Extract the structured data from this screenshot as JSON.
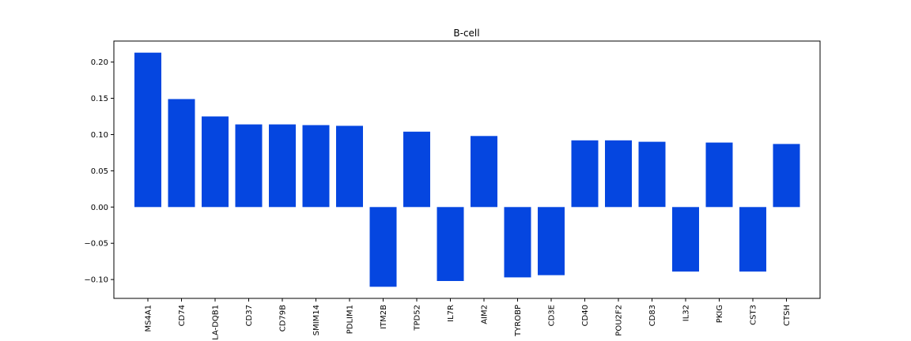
{
  "chart_data": {
    "type": "bar",
    "title": "B-cell",
    "xlabel": "",
    "ylabel": "",
    "categories": [
      "MS4A1",
      "CD74",
      "LA-DQB1",
      "CD37",
      "CD79B",
      "SMIM14",
      "PDLIM1",
      "ITM2B",
      "TPD52",
      "IL7R",
      "AIM2",
      "TYROBP",
      "CD3E",
      "CD40",
      "POU2F2",
      "CD83",
      "IL32",
      "PKIG",
      "CST3",
      "CTSH"
    ],
    "values": [
      0.213,
      0.149,
      0.125,
      0.114,
      0.114,
      0.113,
      0.112,
      -0.11,
      0.104,
      -0.102,
      0.098,
      -0.097,
      -0.094,
      0.092,
      0.092,
      0.09,
      -0.089,
      0.089,
      -0.089,
      0.087
    ],
    "ylim": [
      -0.126,
      0.229
    ],
    "yticks": [
      -0.1,
      -0.05,
      0.0,
      0.05,
      0.1,
      0.15,
      0.2
    ],
    "ytick_labels": [
      "−0.10",
      "−0.05",
      "0.00",
      "0.05",
      "0.10",
      "0.15",
      "0.20"
    ],
    "bar_color": "#0546e0",
    "grid": false,
    "legend": "none"
  }
}
